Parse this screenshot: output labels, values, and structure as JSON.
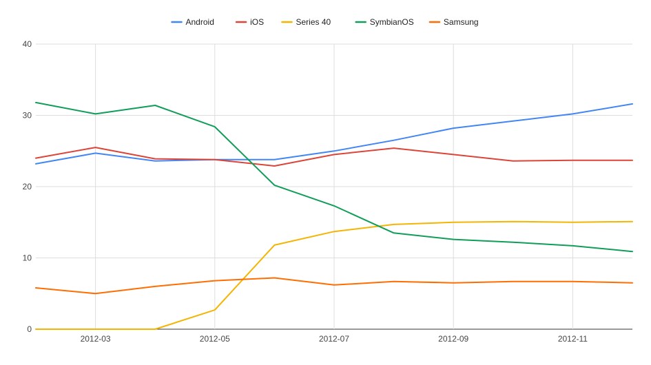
{
  "chart_data": {
    "type": "line",
    "title": "",
    "xlabel": "",
    "ylabel": "",
    "x": [
      "2012-02",
      "2012-03",
      "2012-04",
      "2012-05",
      "2012-06",
      "2012-07",
      "2012-08",
      "2012-09",
      "2012-10",
      "2012-11",
      "2012-12"
    ],
    "x_tick_labels": [
      "2012-03",
      "2012-05",
      "2012-07",
      "2012-09",
      "2012-11"
    ],
    "ylim": [
      0,
      40
    ],
    "y_ticks": [
      0,
      10,
      20,
      30,
      40
    ],
    "grid": true,
    "legend_position": "top",
    "series": [
      {
        "name": "Android",
        "color": "#4285F4",
        "values": [
          23.2,
          24.7,
          23.6,
          23.8,
          23.8,
          25.0,
          26.5,
          28.2,
          29.2,
          30.2,
          31.6
        ]
      },
      {
        "name": "iOS",
        "color": "#DB4437",
        "values": [
          24.0,
          25.5,
          23.9,
          23.8,
          22.9,
          24.5,
          25.4,
          24.5,
          23.6,
          23.7,
          23.7
        ]
      },
      {
        "name": "Series 40",
        "color": "#F4B400",
        "values": [
          0.0,
          0.0,
          0.0,
          2.7,
          11.8,
          13.7,
          14.7,
          15.0,
          15.1,
          15.0,
          15.1
        ]
      },
      {
        "name": "SymbianOS",
        "color": "#0F9D58",
        "values": [
          31.8,
          30.2,
          31.4,
          28.4,
          20.2,
          17.3,
          13.5,
          12.6,
          12.2,
          11.7,
          10.9
        ]
      },
      {
        "name": "Samsung",
        "color": "#FF6D01",
        "values": [
          5.8,
          5.0,
          6.0,
          6.8,
          7.2,
          6.2,
          6.7,
          6.5,
          6.7,
          6.7,
          6.5
        ]
      }
    ]
  }
}
